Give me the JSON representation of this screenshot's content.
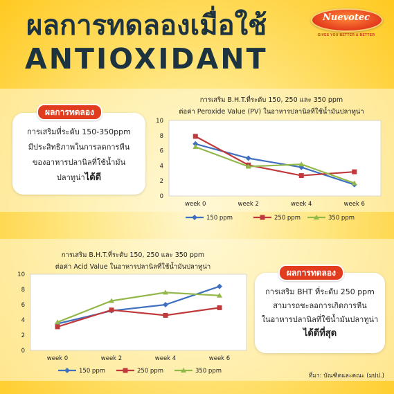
{
  "title_line1": "ผลการทดลองเมื่อใช้",
  "title_line2": "ANTIOXIDANT",
  "logo": {
    "name": "Nuevotec",
    "tagline": "GIVES YOU BETTER & BETTER"
  },
  "panel1": {
    "badge": "ผลการทดลอง",
    "text_line1": "การเสริมที่ระดับ 150-350ppm",
    "text_line2": "มีประสิทธิภาพในการลดการหืน",
    "text_line3": "ของอาหารปลานิลที่ใช้น้ำมัน",
    "text_line4_prefix": "ปลาทูน่า",
    "text_line4_emph": "ได้ดี"
  },
  "panel2": {
    "badge": "ผลการทดลอง",
    "text_line1": "การเสริม BHT ที่ระดับ 250 ppm",
    "text_line2": "สามารถชะลอการเกิดการหืน",
    "text_line3": "ในอาหารปลานิลที่ใช้น้ำมันปลาทูน่า",
    "text_line4": "ได้ดีที่สุด"
  },
  "source": "ที่มา: บัณฑิตและคณะ (มปป.)",
  "colors": {
    "series_150": "#3f6fbf",
    "series_250": "#c0393b",
    "series_350": "#93b84a",
    "accent": "#e13c1e",
    "title": "#1d3340"
  },
  "chart_data": [
    {
      "type": "line",
      "title_line1": "การเสริม B.H.T.ที่ระดับ 150, 250 และ 350 ppm",
      "title_line2": "ต่อค่า Peroxide Value (PV) ในอาหารปลานิลที่ใช้น้ำมันปลาทูน่า",
      "categories": [
        "week 0",
        "week 2",
        "week 4",
        "week 6"
      ],
      "yticks": [
        "0",
        "2",
        "4",
        "6",
        "8",
        "10"
      ],
      "ylim": [
        0,
        10
      ],
      "legend_position": "bottom",
      "grid": false,
      "series": [
        {
          "name": "150 ppm",
          "values": [
            6.9,
            5.0,
            3.8,
            1.5
          ]
        },
        {
          "name": "250 ppm",
          "values": [
            7.9,
            4.1,
            2.7,
            3.2
          ]
        },
        {
          "name": "350 ppm",
          "values": [
            6.5,
            3.9,
            4.2,
            1.7
          ]
        }
      ]
    },
    {
      "type": "line",
      "title_line1": "การเสริม B.H.T.ที่ระดับ 150, 250 และ 350 ppm",
      "title_line2": "ต่อค่า Acid Value ในอาหารปลานิลที่ใช้น้ำมันปลาทูน่า",
      "categories": [
        "week 0",
        "week 2",
        "week 4",
        "week 6"
      ],
      "yticks": [
        "0",
        "2",
        "4",
        "6",
        "8",
        "10"
      ],
      "ylim": [
        0,
        10
      ],
      "legend_position": "bottom",
      "grid": false,
      "series": [
        {
          "name": "150 ppm",
          "values": [
            3.5,
            5.2,
            6.0,
            8.4
          ]
        },
        {
          "name": "250 ppm",
          "values": [
            3.1,
            5.3,
            4.6,
            5.6
          ]
        },
        {
          "name": "350 ppm",
          "values": [
            3.7,
            6.5,
            7.6,
            7.2
          ]
        }
      ]
    }
  ]
}
